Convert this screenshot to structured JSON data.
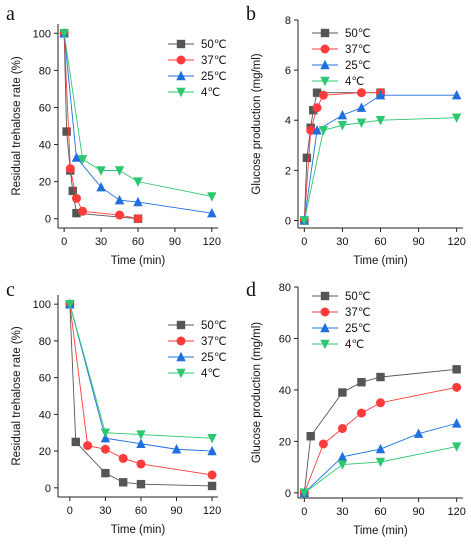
{
  "chart_data": [
    {
      "panel_label": "a",
      "type": "line",
      "xlabel": "Time (min)",
      "ylabel": "Residual trehalose rate (%)",
      "xlim": [
        -5,
        125
      ],
      "ylim": [
        -5,
        105
      ],
      "xticks": [
        0,
        30,
        60,
        90,
        120
      ],
      "yticks": [
        0,
        20,
        40,
        60,
        80,
        100
      ],
      "legend_position": "top-right",
      "series": [
        {
          "name": "50℃",
          "color": "#555555",
          "marker": "square",
          "x": [
            0,
            2,
            5,
            7,
            10,
            60
          ],
          "y": [
            100,
            47,
            26,
            15,
            3,
            0
          ]
        },
        {
          "name": "37℃",
          "color": "#ff3b3b",
          "marker": "circle",
          "x": [
            0,
            5,
            10,
            15,
            45,
            60
          ],
          "y": [
            100,
            27,
            11,
            4,
            2,
            0
          ]
        },
        {
          "name": "25℃",
          "color": "#1f6fe0",
          "marker": "triangle-up",
          "x": [
            0,
            10,
            30,
            45,
            60,
            120
          ],
          "y": [
            100,
            33,
            17,
            10,
            9,
            3
          ]
        },
        {
          "name": "4℃",
          "color": "#2cc770",
          "marker": "triangle-down",
          "x": [
            0,
            15,
            30,
            45,
            60,
            120
          ],
          "y": [
            100,
            32,
            26,
            26,
            20,
            12
          ]
        }
      ]
    },
    {
      "panel_label": "b",
      "type": "line",
      "xlabel": "Time (min)",
      "ylabel": "Glucose production (mg/ml)",
      "xlim": [
        -5,
        125
      ],
      "ylim": [
        -0.3,
        8
      ],
      "xticks": [
        0,
        30,
        60,
        90,
        120
      ],
      "yticks": [
        0,
        2,
        4,
        6,
        8
      ],
      "legend_position": "top-right",
      "series": [
        {
          "name": "50℃",
          "color": "#555555",
          "marker": "square",
          "x": [
            0,
            2,
            5,
            7,
            10,
            60
          ],
          "y": [
            0,
            2.5,
            3.7,
            4.4,
            5.1,
            5.1
          ]
        },
        {
          "name": "37℃",
          "color": "#ff3b3b",
          "marker": "circle",
          "x": [
            0,
            5,
            10,
            15,
            45,
            60
          ],
          "y": [
            0,
            3.6,
            4.5,
            5.0,
            5.1,
            5.1
          ]
        },
        {
          "name": "25℃",
          "color": "#1f6fe0",
          "marker": "triangle-up",
          "x": [
            0,
            10,
            30,
            45,
            60,
            120
          ],
          "y": [
            0,
            3.6,
            4.2,
            4.5,
            5.0,
            5.0
          ]
        },
        {
          "name": "4℃",
          "color": "#2cc770",
          "marker": "triangle-down",
          "x": [
            0,
            15,
            30,
            45,
            60,
            120
          ],
          "y": [
            0,
            3.6,
            3.8,
            3.9,
            4.0,
            4.1
          ]
        }
      ]
    },
    {
      "panel_label": "c",
      "type": "line",
      "xlabel": "Time (min)",
      "ylabel": "Residual trehalose rate (%)",
      "xlim": [
        -10,
        125
      ],
      "ylim": [
        -5,
        105
      ],
      "xticks": [
        0,
        30,
        60,
        90,
        120
      ],
      "yticks": [
        0,
        20,
        40,
        60,
        80,
        100
      ],
      "legend_position": "top-right",
      "series": [
        {
          "name": "50℃",
          "color": "#555555",
          "marker": "square",
          "x": [
            0,
            5,
            30,
            45,
            60,
            120
          ],
          "y": [
            100,
            25,
            8,
            3,
            2,
            1
          ]
        },
        {
          "name": "37℃",
          "color": "#ff3b3b",
          "marker": "circle",
          "x": [
            0,
            15,
            30,
            45,
            60,
            120
          ],
          "y": [
            100,
            23,
            21,
            16,
            13,
            7
          ]
        },
        {
          "name": "25℃",
          "color": "#1f6fe0",
          "marker": "triangle-up",
          "x": [
            0,
            30,
            60,
            90,
            120
          ],
          "y": [
            100,
            27,
            24,
            21,
            20
          ]
        },
        {
          "name": "4℃",
          "color": "#2cc770",
          "marker": "triangle-down",
          "x": [
            0,
            30,
            60,
            120
          ],
          "y": [
            100,
            30,
            29,
            27
          ]
        }
      ]
    },
    {
      "panel_label": "d",
      "type": "line",
      "xlabel": "Time (min)",
      "ylabel": "Glucose production (mg/ml)",
      "xlim": [
        -5,
        125
      ],
      "ylim": [
        -2,
        80
      ],
      "xticks": [
        0,
        30,
        60,
        90,
        120
      ],
      "yticks": [
        0,
        20,
        40,
        60,
        80
      ],
      "legend_position": "top-right",
      "series": [
        {
          "name": "50℃",
          "color": "#555555",
          "marker": "square",
          "x": [
            0,
            5,
            30,
            45,
            60,
            120
          ],
          "y": [
            0,
            22,
            39,
            43,
            45,
            48
          ]
        },
        {
          "name": "37℃",
          "color": "#ff3b3b",
          "marker": "circle",
          "x": [
            0,
            15,
            30,
            45,
            60,
            120
          ],
          "y": [
            0,
            19,
            25,
            31,
            35,
            41
          ]
        },
        {
          "name": "25℃",
          "color": "#1f6fe0",
          "marker": "triangle-up",
          "x": [
            0,
            30,
            60,
            90,
            120
          ],
          "y": [
            0,
            14,
            17,
            23,
            27
          ]
        },
        {
          "name": "4℃",
          "color": "#2cc770",
          "marker": "triangle-down",
          "x": [
            0,
            30,
            60,
            120
          ],
          "y": [
            0,
            11,
            12,
            18
          ]
        }
      ]
    }
  ]
}
